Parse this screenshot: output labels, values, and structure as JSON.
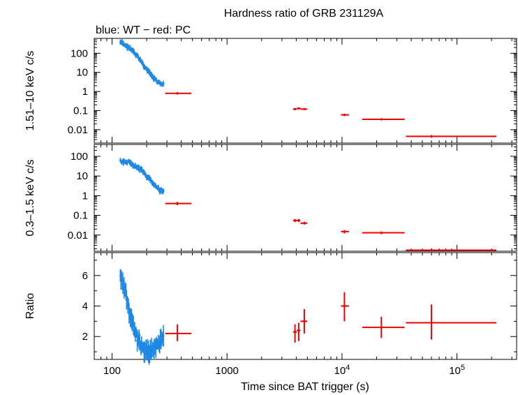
{
  "title": "Hardness ratio of GRB 231129A",
  "subtitle": "blue: WT − red: PC",
  "colors": {
    "wt": "#1e88e5",
    "pc": "#ee0000",
    "axis": "#000000"
  },
  "chart_data": [
    {
      "type": "scatter",
      "panel": "hard",
      "ylabel": "1.51–10 keV c/s",
      "yscale": "log",
      "ylim": [
        0.002,
        600
      ],
      "yticks": [
        {
          "v": 100,
          "label": "100"
        },
        {
          "v": 10,
          "label": "10"
        },
        {
          "v": 1,
          "label": "1"
        },
        {
          "v": 0.1,
          "label": "0.1"
        },
        {
          "v": 0.01,
          "label": "0.01"
        }
      ],
      "series": [
        {
          "name": "WT",
          "mode": "WT",
          "t_start": 118,
          "t_end": 280,
          "points": [
            [
              118,
              380
            ],
            [
              140,
              200
            ],
            [
              170,
              60
            ],
            [
              200,
              14
            ],
            [
              230,
              5
            ],
            [
              255,
              2.8
            ],
            [
              275,
              2.3
            ]
          ]
        },
        {
          "name": "PC",
          "mode": "PC",
          "points": [
            {
              "t": 370,
              "t_lo": 290,
              "t_hi": 490,
              "v": 0.8,
              "v_lo": 0.7,
              "v_hi": 0.92
            },
            {
              "t": 3900,
              "t_lo": 3750,
              "t_hi": 4050,
              "v": 0.12,
              "v_lo": 0.105,
              "v_hi": 0.135
            },
            {
              "t": 4200,
              "t_lo": 4050,
              "t_hi": 4350,
              "v": 0.13,
              "v_lo": 0.115,
              "v_hi": 0.145
            },
            {
              "t": 4700,
              "t_lo": 4350,
              "t_hi": 5000,
              "v": 0.12,
              "v_lo": 0.108,
              "v_hi": 0.132
            },
            {
              "t": 10500,
              "t_lo": 9800,
              "t_hi": 11500,
              "v": 0.06,
              "v_lo": 0.052,
              "v_hi": 0.068
            },
            {
              "t": 22000,
              "t_lo": 15000,
              "t_hi": 35000,
              "v": 0.035,
              "v_lo": 0.031,
              "v_hi": 0.039
            },
            {
              "t": 60000,
              "t_lo": 36000,
              "t_hi": 220000,
              "v": 0.0045,
              "v_lo": 0.0038,
              "v_hi": 0.0052
            }
          ]
        }
      ]
    },
    {
      "type": "scatter",
      "panel": "soft",
      "ylabel": "0.3–1.5 keV c/s",
      "yscale": "log",
      "ylim": [
        0.0015,
        400
      ],
      "yticks": [
        {
          "v": 100,
          "label": "100"
        },
        {
          "v": 10,
          "label": "10"
        },
        {
          "v": 1,
          "label": "1"
        },
        {
          "v": 0.1,
          "label": "0.1"
        },
        {
          "v": 0.01,
          "label": "0.01"
        }
      ],
      "series": [
        {
          "name": "WT",
          "mode": "WT",
          "t_start": 118,
          "t_end": 280,
          "points": [
            [
              118,
              55
            ],
            [
              140,
              50
            ],
            [
              160,
              30
            ],
            [
              180,
              20
            ],
            [
              200,
              10
            ],
            [
              230,
              4
            ],
            [
              255,
              2.2
            ],
            [
              275,
              1.6
            ]
          ]
        },
        {
          "name": "PC",
          "mode": "PC",
          "points": [
            {
              "t": 370,
              "t_lo": 290,
              "t_hi": 490,
              "v": 0.4,
              "v_lo": 0.33,
              "v_hi": 0.48
            },
            {
              "t": 3900,
              "t_lo": 3750,
              "t_hi": 4050,
              "v": 0.055,
              "v_lo": 0.045,
              "v_hi": 0.065
            },
            {
              "t": 4200,
              "t_lo": 4050,
              "t_hi": 4350,
              "v": 0.055,
              "v_lo": 0.046,
              "v_hi": 0.066
            },
            {
              "t": 4700,
              "t_lo": 4350,
              "t_hi": 5000,
              "v": 0.04,
              "v_lo": 0.034,
              "v_hi": 0.047
            },
            {
              "t": 10500,
              "t_lo": 9800,
              "t_hi": 11500,
              "v": 0.015,
              "v_lo": 0.012,
              "v_hi": 0.018
            },
            {
              "t": 22000,
              "t_lo": 15000,
              "t_hi": 35000,
              "v": 0.013,
              "v_lo": 0.011,
              "v_hi": 0.015
            },
            {
              "t": 60000,
              "t_lo": 36000,
              "t_hi": 220000,
              "v": 0.0017,
              "v_lo": 0.0014,
              "v_hi": 0.002
            }
          ]
        }
      ]
    },
    {
      "type": "scatter",
      "panel": "ratio",
      "ylabel": "Ratio",
      "yscale": "linear",
      "ylim": [
        0.5,
        7.5
      ],
      "yticks": [
        {
          "v": 2,
          "label": "2"
        },
        {
          "v": 4,
          "label": "4"
        },
        {
          "v": 6,
          "label": "6"
        }
      ],
      "xlabel": "Time since BAT trigger (s)",
      "xscale": "log",
      "xlim": [
        70,
        330000
      ],
      "xticks": [
        {
          "v": 100,
          "label": "100"
        },
        {
          "v": 1000,
          "label": "1000"
        },
        {
          "v": 10000,
          "label": "10",
          "sup": "4"
        },
        {
          "v": 100000,
          "label": "10",
          "sup": "5"
        }
      ],
      "series": [
        {
          "name": "WT",
          "mode": "WT",
          "t_start": 118,
          "t_end": 280,
          "points": [
            [
              118,
              6
            ],
            [
              130,
              5
            ],
            [
              140,
              3.8
            ],
            [
              150,
              3.0
            ],
            [
              160,
              2.2
            ],
            [
              175,
              1.5
            ],
            [
              190,
              1.1
            ],
            [
              210,
              1.0
            ],
            [
              240,
              1.3
            ],
            [
              270,
              1.7
            ]
          ]
        },
        {
          "name": "PC",
          "mode": "PC",
          "points": [
            {
              "t": 370,
              "t_lo": 290,
              "t_hi": 490,
              "v": 2.2,
              "v_lo": 1.7,
              "v_hi": 2.8
            },
            {
              "t": 3900,
              "t_lo": 3750,
              "t_hi": 4050,
              "v": 2.3,
              "v_lo": 1.6,
              "v_hi": 2.8
            },
            {
              "t": 4200,
              "t_lo": 4050,
              "t_hi": 4350,
              "v": 2.4,
              "v_lo": 1.7,
              "v_hi": 2.9
            },
            {
              "t": 4700,
              "t_lo": 4350,
              "t_hi": 5000,
              "v": 3.0,
              "v_lo": 2.2,
              "v_hi": 3.8
            },
            {
              "t": 10500,
              "t_lo": 9800,
              "t_hi": 11500,
              "v": 4.0,
              "v_lo": 3.0,
              "v_hi": 4.9
            },
            {
              "t": 22000,
              "t_lo": 15000,
              "t_hi": 35000,
              "v": 2.6,
              "v_lo": 1.9,
              "v_hi": 3.3
            },
            {
              "t": 60000,
              "t_lo": 36000,
              "t_hi": 220000,
              "v": 2.9,
              "v_lo": 1.8,
              "v_hi": 4.1
            }
          ]
        }
      ]
    }
  ]
}
